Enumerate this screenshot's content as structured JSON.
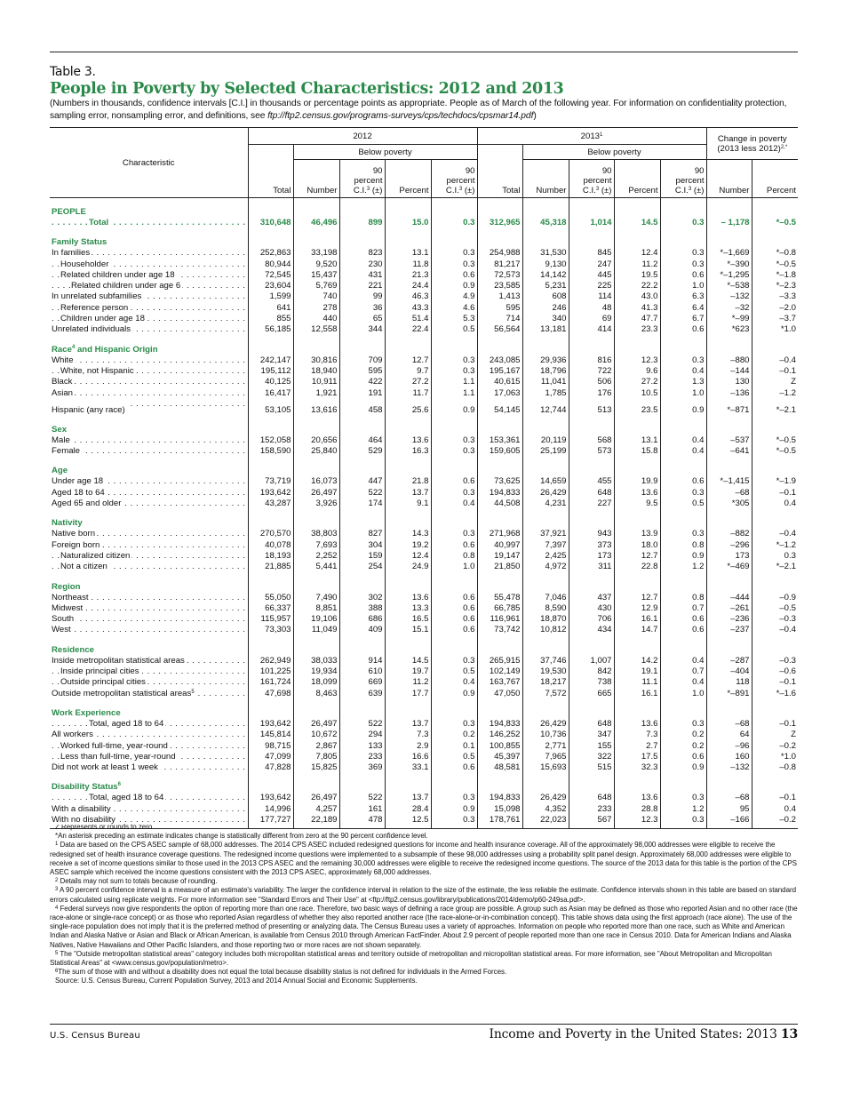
{
  "header": {
    "table_number": "Table 3.",
    "title": "People in Poverty by Selected Characteristics: 2012 and 2013",
    "subtitle_text": "(Numbers in thousands, confidence intervals [C.I.] in thousands or percentage points as appropriate. People as of March of the following year. For information on confidentiality protection, sampling error, nonsampling error, and definitions, see ",
    "subtitle_link": "ftp://ftp2.census.gov/programs-surveys/cps/techdocs/cpsmar14.pdf",
    "subtitle_end": ")"
  },
  "columns": {
    "characteristic": "Characteristic",
    "year1": "2012",
    "year2": "2013",
    "year2_sup": "1",
    "below_poverty": "Below poverty",
    "change": "Change in poverty (2013 less 2012)",
    "change_sup": "2,*",
    "total": "Total",
    "number": "Number",
    "ci_line1": "90",
    "ci_line2": "percent",
    "ci_line3a": "C.I.",
    "ci_sup": "3",
    "ci_line3b": " (±)",
    "percent": "Percent"
  },
  "rows": [
    {
      "type": "section",
      "label": "PEOPLE"
    },
    {
      "type": "row",
      "label": "Total",
      "indent": 3,
      "green": true,
      "v": [
        "310,648",
        "46,496",
        "899",
        "15.0",
        "0.3",
        "312,965",
        "45,318",
        "1,014",
        "14.5",
        "0.3",
        "– 1,178",
        "*–0.5"
      ]
    },
    {
      "type": "section",
      "label": "Family Status"
    },
    {
      "type": "row",
      "label": "In families",
      "indent": 0,
      "v": [
        "252,863",
        "33,198",
        "823",
        "13.1",
        "0.3",
        "254,988",
        "31,530",
        "845",
        "12.4",
        "0.3",
        "*–1,669",
        "*–0.8"
      ]
    },
    {
      "type": "row",
      "label": "Householder",
      "indent": 1,
      "v": [
        "80,944",
        "9,520",
        "230",
        "11.8",
        "0.3",
        "81,217",
        "9,130",
        "247",
        "11.2",
        "0.3",
        "*–390",
        "*–0.5"
      ]
    },
    {
      "type": "row",
      "label": "Related children under age 18",
      "indent": 1,
      "v": [
        "72,545",
        "15,437",
        "431",
        "21.3",
        "0.6",
        "72,573",
        "14,142",
        "445",
        "19.5",
        "0.6",
        "*–1,295",
        "*–1.8"
      ]
    },
    {
      "type": "row",
      "label": "Related children under age 6",
      "indent": 2,
      "v": [
        "23,604",
        "5,769",
        "221",
        "24.4",
        "0.9",
        "23,585",
        "5,231",
        "225",
        "22.2",
        "1.0",
        "*–538",
        "*–2.3"
      ]
    },
    {
      "type": "row",
      "label": "In unrelated subfamilies",
      "indent": 0,
      "v": [
        "1,599",
        "740",
        "99",
        "46.3",
        "4.9",
        "1,413",
        "608",
        "114",
        "43.0",
        "6.3",
        "–132",
        "–3.3"
      ]
    },
    {
      "type": "row",
      "label": "Reference person",
      "indent": 1,
      "v": [
        "641",
        "278",
        "36",
        "43.3",
        "4.6",
        "595",
        "246",
        "48",
        "41.3",
        "6.4",
        "–32",
        "–2.0"
      ]
    },
    {
      "type": "row",
      "label": "Children under age 18",
      "indent": 1,
      "v": [
        "855",
        "440",
        "65",
        "51.4",
        "5.3",
        "714",
        "340",
        "69",
        "47.7",
        "6.7",
        "*–99",
        "–3.7"
      ]
    },
    {
      "type": "row",
      "label": "Unrelated individuals",
      "indent": 0,
      "v": [
        "56,185",
        "12,558",
        "344",
        "22.4",
        "0.5",
        "56,564",
        "13,181",
        "414",
        "23.3",
        "0.6",
        "*623",
        "*1.0"
      ]
    },
    {
      "type": "section",
      "label": "Race",
      "sup": "4",
      "label2": " and Hispanic Origin"
    },
    {
      "type": "row",
      "label": "White",
      "indent": 0,
      "v": [
        "242,147",
        "30,816",
        "709",
        "12.7",
        "0.3",
        "243,085",
        "29,936",
        "816",
        "12.3",
        "0.3",
        "–880",
        "–0.4"
      ]
    },
    {
      "type": "row",
      "label": "White, not Hispanic",
      "indent": 1,
      "v": [
        "195,112",
        "18,940",
        "595",
        "9.7",
        "0.3",
        "195,167",
        "18,796",
        "722",
        "9.6",
        "0.4",
        "–144",
        "–0.1"
      ]
    },
    {
      "type": "row",
      "label": "Black",
      "indent": 0,
      "v": [
        "40,125",
        "10,911",
        "422",
        "27.2",
        "1.1",
        "40,615",
        "11,041",
        "506",
        "27.2",
        "1.3",
        "130",
        "Z"
      ]
    },
    {
      "type": "row",
      "label": "Asian",
      "indent": 0,
      "v": [
        "16,417",
        "1,921",
        "191",
        "11.7",
        "1.1",
        "17,063",
        "1,785",
        "176",
        "10.5",
        "1.0",
        "–136",
        "–1.2"
      ]
    },
    {
      "type": "row",
      "label": "Hispanic (any race)",
      "indent": 0,
      "gap": true,
      "v": [
        "53,105",
        "13,616",
        "458",
        "25.6",
        "0.9",
        "54,145",
        "12,744",
        "513",
        "23.5",
        "0.9",
        "*–871",
        "*–2.1"
      ]
    },
    {
      "type": "section",
      "label": "Sex"
    },
    {
      "type": "row",
      "label": "Male",
      "indent": 0,
      "v": [
        "152,058",
        "20,656",
        "464",
        "13.6",
        "0.3",
        "153,361",
        "20,119",
        "568",
        "13.1",
        "0.4",
        "–537",
        "*–0.5"
      ]
    },
    {
      "type": "row",
      "label": "Female",
      "indent": 0,
      "v": [
        "158,590",
        "25,840",
        "529",
        "16.3",
        "0.3",
        "159,605",
        "25,199",
        "573",
        "15.8",
        "0.4",
        "–641",
        "*–0.5"
      ]
    },
    {
      "type": "section",
      "label": "Age"
    },
    {
      "type": "row",
      "label": "Under age 18",
      "indent": 0,
      "v": [
        "73,719",
        "16,073",
        "447",
        "21.8",
        "0.6",
        "73,625",
        "14,659",
        "455",
        "19.9",
        "0.6",
        "*–1,415",
        "*–1.9"
      ]
    },
    {
      "type": "row",
      "label": "Aged 18 to 64",
      "indent": 0,
      "v": [
        "193,642",
        "26,497",
        "522",
        "13.7",
        "0.3",
        "194,833",
        "26,429",
        "648",
        "13.6",
        "0.3",
        "–68",
        "–0.1"
      ]
    },
    {
      "type": "row",
      "label": "Aged 65 and older",
      "indent": 0,
      "v": [
        "43,287",
        "3,926",
        "174",
        "9.1",
        "0.4",
        "44,508",
        "4,231",
        "227",
        "9.5",
        "0.5",
        "*305",
        "0.4"
      ]
    },
    {
      "type": "section",
      "label": "Nativity"
    },
    {
      "type": "row",
      "label": "Native born",
      "indent": 0,
      "v": [
        "270,570",
        "38,803",
        "827",
        "14.3",
        "0.3",
        "271,968",
        "37,921",
        "943",
        "13.9",
        "0.3",
        "–882",
        "–0.4"
      ]
    },
    {
      "type": "row",
      "label": "Foreign born",
      "indent": 0,
      "v": [
        "40,078",
        "7,693",
        "304",
        "19.2",
        "0.6",
        "40,997",
        "7,397",
        "373",
        "18.0",
        "0.8",
        "–296",
        "*–1.2"
      ]
    },
    {
      "type": "row",
      "label": "Naturalized citizen",
      "indent": 1,
      "v": [
        "18,193",
        "2,252",
        "159",
        "12.4",
        "0.8",
        "19,147",
        "2,425",
        "173",
        "12.7",
        "0.9",
        "173",
        "0.3"
      ]
    },
    {
      "type": "row",
      "label": "Not a citizen",
      "indent": 1,
      "v": [
        "21,885",
        "5,441",
        "254",
        "24.9",
        "1.0",
        "21,850",
        "4,972",
        "311",
        "22.8",
        "1.2",
        "*–469",
        "*–2.1"
      ]
    },
    {
      "type": "section",
      "label": "Region"
    },
    {
      "type": "row",
      "label": "Northeast",
      "indent": 0,
      "v": [
        "55,050",
        "7,490",
        "302",
        "13.6",
        "0.6",
        "55,478",
        "7,046",
        "437",
        "12.7",
        "0.8",
        "–444",
        "–0.9"
      ]
    },
    {
      "type": "row",
      "label": "Midwest",
      "indent": 0,
      "v": [
        "66,337",
        "8,851",
        "388",
        "13.3",
        "0.6",
        "66,785",
        "8,590",
        "430",
        "12.9",
        "0.7",
        "–261",
        "–0.5"
      ]
    },
    {
      "type": "row",
      "label": "South",
      "indent": 0,
      "v": [
        "115,957",
        "19,106",
        "686",
        "16.5",
        "0.6",
        "116,961",
        "18,870",
        "706",
        "16.1",
        "0.6",
        "–236",
        "–0.3"
      ]
    },
    {
      "type": "row",
      "label": "West",
      "indent": 0,
      "v": [
        "73,303",
        "11,049",
        "409",
        "15.1",
        "0.6",
        "73,742",
        "10,812",
        "434",
        "14.7",
        "0.6",
        "–237",
        "–0.4"
      ]
    },
    {
      "type": "section",
      "label": "Residence"
    },
    {
      "type": "row",
      "label": "Inside metropolitan statistical areas",
      "indent": 0,
      "v": [
        "262,949",
        "38,033",
        "914",
        "14.5",
        "0.3",
        "265,915",
        "37,746",
        "1,007",
        "14.2",
        "0.4",
        "–287",
        "–0.3"
      ]
    },
    {
      "type": "row",
      "label": "Inside principal cities",
      "indent": 1,
      "v": [
        "101,225",
        "19,934",
        "610",
        "19.7",
        "0.5",
        "102,149",
        "19,530",
        "842",
        "19.1",
        "0.7",
        "–404",
        "–0.6"
      ]
    },
    {
      "type": "row",
      "label": "Outside principal cities",
      "indent": 1,
      "v": [
        "161,724",
        "18,099",
        "669",
        "11.2",
        "0.4",
        "163,767",
        "18,217",
        "738",
        "11.1",
        "0.4",
        "118",
        "–0.1"
      ]
    },
    {
      "type": "row",
      "label": "Outside metropolitan statistical areas",
      "sup": "5",
      "indent": 0,
      "v": [
        "47,698",
        "8,463",
        "639",
        "17.7",
        "0.9",
        "47,050",
        "7,572",
        "665",
        "16.1",
        "1.0",
        "*–891",
        "*–1.6"
      ]
    },
    {
      "type": "section",
      "label": "Work Experience"
    },
    {
      "type": "row",
      "label": "Total, aged 18 to 64",
      "indent": 3,
      "v": [
        "193,642",
        "26,497",
        "522",
        "13.7",
        "0.3",
        "194,833",
        "26,429",
        "648",
        "13.6",
        "0.3",
        "–68",
        "–0.1"
      ]
    },
    {
      "type": "row",
      "label": "All workers",
      "indent": 0,
      "v": [
        "145,814",
        "10,672",
        "294",
        "7.3",
        "0.2",
        "146,252",
        "10,736",
        "347",
        "7.3",
        "0.2",
        "64",
        "Z"
      ]
    },
    {
      "type": "row",
      "label": "Worked full-time, year-round",
      "indent": 1,
      "v": [
        "98,715",
        "2,867",
        "133",
        "2.9",
        "0.1",
        "100,855",
        "2,771",
        "155",
        "2.7",
        "0.2",
        "–96",
        "–0.2"
      ]
    },
    {
      "type": "row",
      "label": "Less than full-time, year-round",
      "indent": 1,
      "v": [
        "47,099",
        "7,805",
        "233",
        "16.6",
        "0.5",
        "45,397",
        "7,965",
        "322",
        "17.5",
        "0.6",
        "160",
        "*1.0"
      ]
    },
    {
      "type": "row",
      "label": "Did not work at least 1 week",
      "indent": 0,
      "v": [
        "47,828",
        "15,825",
        "369",
        "33.1",
        "0.6",
        "48,581",
        "15,693",
        "515",
        "32.3",
        "0.9",
        "–132",
        "–0.8"
      ]
    },
    {
      "type": "section",
      "label": "Disability Status",
      "sup": "6"
    },
    {
      "type": "row",
      "label": "Total, aged 18 to 64",
      "indent": 3,
      "v": [
        "193,642",
        "26,497",
        "522",
        "13.7",
        "0.3",
        "194,833",
        "26,429",
        "648",
        "13.6",
        "0.3",
        "–68",
        "–0.1"
      ]
    },
    {
      "type": "row",
      "label": "With a disability",
      "indent": 0,
      "v": [
        "14,996",
        "4,257",
        "161",
        "28.4",
        "0.9",
        "15,098",
        "4,352",
        "233",
        "28.8",
        "1.2",
        "95",
        "0.4"
      ]
    },
    {
      "type": "row",
      "label": "With no disability",
      "indent": 0,
      "v": [
        "177,727",
        "22,189",
        "478",
        "12.5",
        "0.3",
        "178,761",
        "22,023",
        "567",
        "12.3",
        "0.3",
        "–166",
        "–0.2"
      ]
    }
  ],
  "footnotes": [
    {
      "mark": "",
      "text": "Z Represents or rounds to zero.",
      "in": true
    },
    {
      "mark": "",
      "text": "*An asterisk preceding an estimate indicates change is statistically different from zero at the 90 percent confidence level.",
      "in": true
    },
    {
      "mark": "1",
      "text": " Data are based on the CPS ASEC sample of 68,000 addresses. The 2014 CPS ASEC included redesigned questions for income and health insurance coverage. All of the approximately 98,000 addresses were eligible to receive the redesigned set of health insurance coverage questions. The redesigned income questions were implemented to a subsample of these 98,000 addresses using a probability split panel design. Approximately 68,000 addresses were eligible to receive a set of income questions similar to those used in the 2013 CPS ASEC and the remaining 30,000 addresses were eligible to receive the redesigned income questions. The source of the 2013 data for this table is the portion of the CPS ASEC sample which received the income questions consistent with the 2013 CPS ASEC, approximately 68,000 addresses."
    },
    {
      "mark": "2",
      "text": " Details may not sum to totals because of rounding."
    },
    {
      "mark": "3",
      "text": " A 90 percent confidence interval is a measure of an estimate's variability. The larger the confidence interval in relation to the size of the estimate, the less reliable the estimate. Confidence intervals shown in this table are based on standard errors calculated using replicate weights. For more information see \"Standard Errors and Their Use\" at <ftp://ftp2.census.gov/library/publications/2014/demo/p60-249sa.pdf>."
    },
    {
      "mark": "4",
      "text": " Federal surveys now give respondents the option of reporting more than one race. Therefore, two basic ways of defining a race group are possible. A group such as Asian may be defined as those who reported Asian and no other race (the race-alone or single-race concept) or as those who reported Asian regardless of whether they also reported another race (the race-alone-or-in-combination concept). This table shows data using the first approach (race alone). The use of the single-race population does not imply that it is the preferred method of presenting or analyzing data. The Census Bureau uses a variety of approaches. Information on people who reported more than one race, such as White and American Indian and Alaska Native or Asian and Black or African American, is available from Census 2010 through American FactFinder. About 2.9 percent of people reported more than one race in Census 2010. Data for American Indians and Alaska Natives, Native Hawaiians and Other Pacific Islanders, and those reporting two or more races are not shown separately."
    },
    {
      "mark": "5",
      "text": " The \"Outside metropolitan statistical areas\" category includes both micropolitan statistical areas and territory outside of metropolitan and micropolitan statistical areas. For more information, see \"About Metropolitan and Micropolitan Statistical Areas\" at <www.census.gov/population/metro>."
    },
    {
      "mark": "6",
      "text": "The sum of those with and without a disability does not equal the total because disability status is not defined for individuals in the Armed Forces.",
      "in": true
    },
    {
      "mark": "",
      "text": "Source: U.S. Census Bureau, Current Population Survey, 2013 and 2014 Annual Social and Economic Supplements.",
      "in": true
    }
  ],
  "footer": {
    "left": "U.S. Census Bureau",
    "right": "Income and Poverty in the United States: 2013 ",
    "page": "13"
  }
}
